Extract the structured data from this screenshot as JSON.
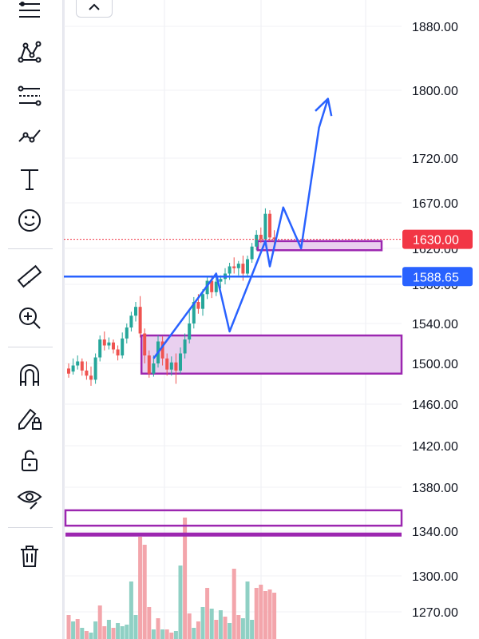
{
  "toolbar": {
    "items": [
      {
        "icon": "menu-lines-icon"
      },
      {
        "icon": "pattern-icon"
      },
      {
        "icon": "fib-levels-icon"
      },
      {
        "icon": "trend-line-icon"
      },
      {
        "icon": "text-tool-icon"
      },
      {
        "icon": "emoji-icon"
      },
      {
        "icon": "ruler-icon"
      },
      {
        "icon": "zoom-in-icon"
      },
      {
        "icon": "magnet-icon"
      },
      {
        "icon": "lock-drawing-icon"
      },
      {
        "icon": "unlock-icon"
      },
      {
        "icon": "eye-icon"
      },
      {
        "icon": "trash-icon"
      }
    ],
    "collapse_icon": "chevron-up-icon"
  },
  "colors": {
    "up": "#26a69a",
    "down": "#ef5350",
    "up_volume": "#8fd0c4",
    "down_volume": "#f3a5ab",
    "drawing_blue": "#2962ff",
    "zone_purple": "#9c27b0",
    "zone_fill": "#e9d0ef",
    "price_tag_red": "#f23645",
    "price_tag_blue": "#2962ff"
  },
  "chart_data": {
    "type": "candlestick",
    "price_axis": {
      "ticks": [
        "1880.00",
        "1800.00",
        "1720.00",
        "1670.00",
        "1620.00",
        "1580.00",
        "1540.00",
        "1500.00",
        "1460.00",
        "1420.00",
        "1380.00",
        "1340.00",
        "1300.00",
        "1270.00"
      ],
      "tick_values": [
        1880,
        1800,
        1720,
        1670,
        1620,
        1580,
        1540,
        1500,
        1460,
        1420,
        1380,
        1340,
        1300,
        1270
      ]
    },
    "current_price": {
      "label": "1630.00",
      "value": 1630
    },
    "horizontal_line": {
      "label": "1588.65",
      "value": 1588.65
    },
    "candles": [
      [
        1495,
        1500,
        1490,
        1486
      ],
      [
        1492,
        1505,
        1498,
        1489
      ],
      [
        1498,
        1508,
        1502,
        1494
      ],
      [
        1502,
        1505,
        1493,
        1488
      ],
      [
        1493,
        1502,
        1488,
        1484
      ],
      [
        1488,
        1497,
        1484,
        1478
      ],
      [
        1484,
        1510,
        1506,
        1480
      ],
      [
        1506,
        1528,
        1524,
        1502
      ],
      [
        1524,
        1532,
        1518,
        1513
      ],
      [
        1518,
        1526,
        1521,
        1514
      ],
      [
        1521,
        1524,
        1514,
        1510
      ],
      [
        1514,
        1518,
        1508,
        1503
      ],
      [
        1508,
        1531,
        1525,
        1505
      ],
      [
        1525,
        1540,
        1536,
        1520
      ],
      [
        1536,
        1552,
        1548,
        1532
      ],
      [
        1548,
        1562,
        1557,
        1542
      ],
      [
        1557,
        1568,
        1530,
        1526
      ],
      [
        1530,
        1535,
        1508,
        1500
      ],
      [
        1508,
        1513,
        1490,
        1486
      ],
      [
        1490,
        1508,
        1500,
        1487
      ],
      [
        1500,
        1528,
        1522,
        1496
      ],
      [
        1522,
        1527,
        1505,
        1498
      ],
      [
        1505,
        1510,
        1494,
        1488
      ],
      [
        1494,
        1507,
        1501,
        1488
      ],
      [
        1501,
        1510,
        1493,
        1480
      ],
      [
        1493,
        1516,
        1510,
        1490
      ],
      [
        1510,
        1530,
        1524,
        1505
      ],
      [
        1524,
        1554,
        1540,
        1520
      ],
      [
        1540,
        1567,
        1562,
        1535
      ],
      [
        1562,
        1570,
        1555,
        1550
      ],
      [
        1555,
        1575,
        1570,
        1548
      ],
      [
        1570,
        1588,
        1584,
        1565
      ],
      [
        1584,
        1590,
        1572,
        1566
      ],
      [
        1572,
        1588,
        1583,
        1568
      ],
      [
        1583,
        1590,
        1586,
        1576
      ],
      [
        1586,
        1598,
        1592,
        1580
      ],
      [
        1592,
        1604,
        1600,
        1585
      ],
      [
        1600,
        1610,
        1598,
        1592
      ],
      [
        1598,
        1606,
        1603,
        1590
      ],
      [
        1603,
        1612,
        1592,
        1584
      ],
      [
        1592,
        1612,
        1608,
        1588
      ],
      [
        1608,
        1626,
        1622,
        1604
      ],
      [
        1622,
        1640,
        1635,
        1618
      ],
      [
        1635,
        1643,
        1630,
        1626
      ],
      [
        1630,
        1664,
        1658,
        1626
      ],
      [
        1658,
        1662,
        1632,
        1628
      ],
      [
        1632,
        1640,
        1630,
        1620
      ]
    ],
    "volumes": [
      [
        30,
        "down"
      ],
      [
        22,
        "up"
      ],
      [
        25,
        "down"
      ],
      [
        14,
        "up"
      ],
      [
        10,
        "down"
      ],
      [
        8,
        "up"
      ],
      [
        22,
        "up"
      ],
      [
        42,
        "down"
      ],
      [
        16,
        "down"
      ],
      [
        24,
        "up"
      ],
      [
        14,
        "down"
      ],
      [
        20,
        "up"
      ],
      [
        16,
        "up"
      ],
      [
        18,
        "up"
      ],
      [
        72,
        "up"
      ],
      [
        30,
        "up"
      ],
      [
        128,
        "down"
      ],
      [
        118,
        "down"
      ],
      [
        40,
        "down"
      ],
      [
        12,
        "up"
      ],
      [
        26,
        "down"
      ],
      [
        12,
        "up"
      ],
      [
        12,
        "down"
      ],
      [
        8,
        "down"
      ],
      [
        10,
        "up"
      ],
      [
        92,
        "up"
      ],
      [
        152,
        "down"
      ],
      [
        32,
        "down"
      ],
      [
        14,
        "up"
      ],
      [
        22,
        "down"
      ],
      [
        40,
        "up"
      ],
      [
        64,
        "down"
      ],
      [
        38,
        "up"
      ],
      [
        24,
        "down"
      ],
      [
        36,
        "up"
      ],
      [
        28,
        "down"
      ],
      [
        20,
        "up"
      ],
      [
        88,
        "down"
      ],
      [
        30,
        "down"
      ],
      [
        26,
        "up"
      ],
      [
        72,
        "up"
      ],
      [
        24,
        "up"
      ],
      [
        64,
        "down"
      ],
      [
        68,
        "down"
      ],
      [
        60,
        "down"
      ],
      [
        62,
        "down"
      ],
      [
        58,
        "down"
      ]
    ],
    "demand_zones": [
      {
        "from": 1490,
        "to": 1528,
        "start_index": 17
      },
      {
        "from": 1618,
        "to": 1628,
        "start_index": 43,
        "end_index": 70
      },
      {
        "from": 1345,
        "to": 1359,
        "start_index": 0
      },
      {
        "from": 1337,
        "to": 1337,
        "start_index": 0
      }
    ],
    "projection_path": [
      [
        19,
        1505
      ],
      [
        33,
        1592
      ],
      [
        36,
        1532
      ],
      [
        44,
        1628
      ],
      [
        45,
        1600
      ],
      [
        48,
        1665
      ],
      [
        52,
        1620
      ],
      [
        56,
        1756
      ],
      [
        58,
        1790
      ]
    ]
  }
}
